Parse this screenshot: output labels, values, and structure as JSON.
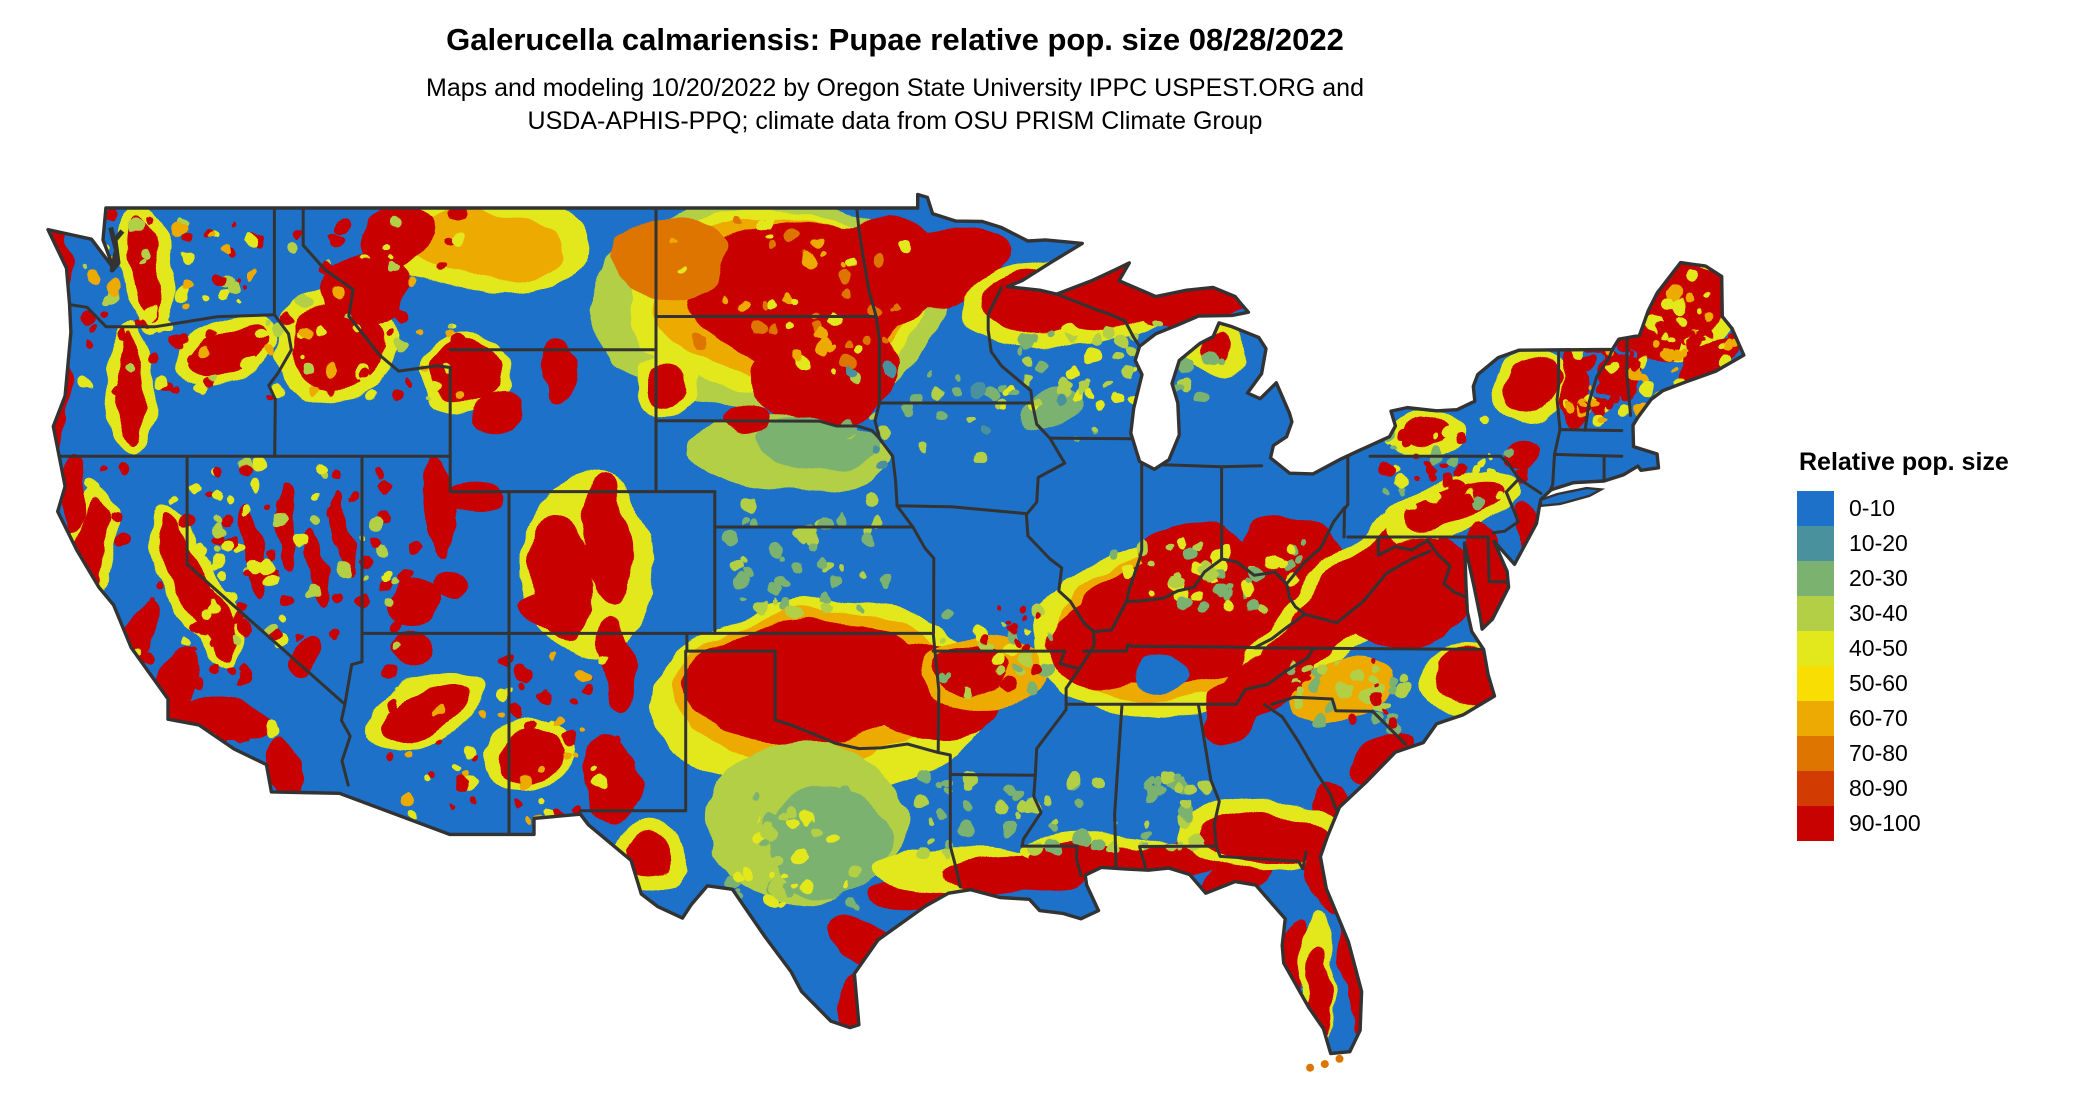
{
  "header": {
    "title": "Galerucella calmariensis: Pupae relative pop. size 08/28/2022",
    "subtitle_line1": "Maps and modeling 10/20/2022 by Oregon State University IPPC USPEST.ORG and",
    "subtitle_line2": "USDA-APHIS-PPQ; climate data from OSU PRISM Climate Group"
  },
  "legend": {
    "title": "Relative pop. size",
    "items": [
      {
        "label": "0-10",
        "color": "#1d71c8"
      },
      {
        "label": "10-20",
        "color": "#4a919e"
      },
      {
        "label": "20-30",
        "color": "#7bb26f"
      },
      {
        "label": "30-40",
        "color": "#b2cf45"
      },
      {
        "label": "40-50",
        "color": "#e3e81d"
      },
      {
        "label": "50-60",
        "color": "#f8de02"
      },
      {
        "label": "60-70",
        "color": "#edaa02"
      },
      {
        "label": "70-80",
        "color": "#dd7500"
      },
      {
        "label": "80-90",
        "color": "#d23b02"
      },
      {
        "label": "90-100",
        "color": "#c80101"
      }
    ]
  },
  "map": {
    "description": "Contiguous United States raster map of relative pupae population size: blue (0-10) base with red/orange/yellow hotspots over the western mountain ranges, the northern plains (Dakotas/Minnesota), Oklahoma-north Texas, Kentucky-Tennessee, the Appalachians and mid-Atlantic, the Gulf Coast fringe, Florida coasts and northern New England.",
    "background": "#ffffff",
    "base_color": "#1d71c8",
    "border_color": "#333333",
    "palette": {
      "b": "#1d71c8",
      "t": "#4a919e",
      "g": "#7bb26f",
      "yg": "#b2cf45",
      "y": "#e3e81d",
      "gd": "#f8de02",
      "o": "#edaa02",
      "do": "#dd7500",
      "ro": "#d23b02",
      "r": "#c80101"
    },
    "hotspots": [
      [
        -100.3,
        46.3,
        6.0,
        3.0,
        0,
        "yg"
      ],
      [
        -100.0,
        46.4,
        5.0,
        2.6,
        0,
        "y"
      ],
      [
        -99.8,
        46.5,
        4.4,
        2.3,
        0,
        "o"
      ],
      [
        -99.2,
        46.6,
        3.7,
        2.1,
        0,
        "r"
      ],
      [
        -98.4,
        44.5,
        2.5,
        1.6,
        -18,
        "r"
      ],
      [
        -96.5,
        47.2,
        2.3,
        1.5,
        -12,
        "r"
      ],
      [
        -94.3,
        47.4,
        2.4,
        1.1,
        -14,
        "r"
      ],
      [
        -90.0,
        46.35,
        3.8,
        1.25,
        -7,
        "y"
      ],
      [
        -89.8,
        46.45,
        3.2,
        0.95,
        -7,
        "r"
      ],
      [
        -85.9,
        46.35,
        2.3,
        0.6,
        -4,
        "r"
      ],
      [
        -103.6,
        47.6,
        2.0,
        1.2,
        0,
        "do"
      ],
      [
        -110.1,
        48.1,
        3.8,
        1.5,
        6,
        "y"
      ],
      [
        -109.8,
        47.9,
        2.6,
        1.0,
        6,
        "o"
      ],
      [
        -112.9,
        48.3,
        1.3,
        0.9,
        -20,
        "r"
      ],
      [
        -103.75,
        43.95,
        1.15,
        0.85,
        0,
        "y"
      ],
      [
        -103.75,
        43.95,
        0.75,
        0.6,
        0,
        "r"
      ],
      [
        -99.6,
        42.0,
        3.4,
        1.05,
        3,
        "yg"
      ],
      [
        -98.6,
        42.3,
        2.0,
        0.75,
        0,
        "g"
      ],
      [
        -100.9,
        42.95,
        0.8,
        0.45,
        0,
        "r"
      ],
      [
        -121.4,
        47.4,
        0.95,
        1.9,
        -8,
        "y"
      ],
      [
        -121.45,
        47.35,
        0.5,
        1.6,
        -8,
        "r"
      ],
      [
        -121.95,
        43.9,
        0.85,
        2.0,
        -4,
        "y"
      ],
      [
        -121.95,
        43.9,
        0.45,
        1.75,
        -4,
        "r"
      ],
      [
        -124.35,
        47.4,
        0.3,
        1.3,
        4,
        "r"
      ],
      [
        -124.25,
        43.9,
        0.28,
        1.7,
        4,
        "r"
      ],
      [
        -118.7,
        44.9,
        1.7,
        0.9,
        -28,
        "y"
      ],
      [
        -118.6,
        44.9,
        1.3,
        0.6,
        -28,
        "r"
      ],
      [
        -123.3,
        39.5,
        0.8,
        1.7,
        10,
        "y"
      ],
      [
        -123.35,
        39.4,
        0.5,
        1.45,
        10,
        "r"
      ],
      [
        -123.9,
        40.9,
        0.45,
        1.2,
        6,
        "r"
      ],
      [
        -121.7,
        36.7,
        0.55,
        1.2,
        22,
        "r"
      ],
      [
        -120.4,
        35.5,
        0.75,
        1.1,
        18,
        "r"
      ],
      [
        -119.75,
        38.3,
        0.95,
        2.5,
        -27,
        "y"
      ],
      [
        -119.7,
        38.25,
        0.6,
        2.25,
        -27,
        "r"
      ],
      [
        -118.7,
        34.55,
        1.7,
        0.55,
        4,
        "r"
      ],
      [
        -116.7,
        33.2,
        0.6,
        0.9,
        -8,
        "r"
      ],
      [
        -115.0,
        45.1,
        2.1,
        1.6,
        -22,
        "y"
      ],
      [
        -114.9,
        45.1,
        1.6,
        1.2,
        -22,
        "r"
      ],
      [
        -113.9,
        46.8,
        1.6,
        1.0,
        -32,
        "r"
      ],
      [
        -110.5,
        44.3,
        1.5,
        1.1,
        -10,
        "y"
      ],
      [
        -110.45,
        44.35,
        1.15,
        0.85,
        -10,
        "r"
      ],
      [
        -109.3,
        43.2,
        0.85,
        0.65,
        -35,
        "r"
      ],
      [
        -107.45,
        44.5,
        0.6,
        0.9,
        -12,
        "r"
      ],
      [
        -111.45,
        40.6,
        0.5,
        1.4,
        -6,
        "r"
      ],
      [
        -110.3,
        40.82,
        1.1,
        0.4,
        2,
        "r"
      ],
      [
        -112.3,
        37.9,
        0.9,
        0.7,
        -18,
        "r"
      ],
      [
        -111.0,
        38.3,
        0.6,
        0.5,
        -25,
        "r"
      ],
      [
        -106.4,
        38.9,
        2.3,
        2.6,
        0,
        "y"
      ],
      [
        -107.3,
        38.6,
        1.05,
        1.9,
        -8,
        "r"
      ],
      [
        -105.7,
        39.6,
        0.8,
        1.8,
        -6,
        "r"
      ],
      [
        -107.6,
        37.65,
        1.1,
        0.6,
        4,
        "r"
      ],
      [
        -105.35,
        36.2,
        0.55,
        1.3,
        -10,
        "r"
      ],
      [
        -108.35,
        33.6,
        1.5,
        1.0,
        -15,
        "y"
      ],
      [
        -108.3,
        33.55,
        1.05,
        0.7,
        -15,
        "r"
      ],
      [
        -111.9,
        34.8,
        2.1,
        0.95,
        -24,
        "y"
      ],
      [
        -111.85,
        34.75,
        1.55,
        0.6,
        -24,
        "r"
      ],
      [
        -112.35,
        36.55,
        0.65,
        0.45,
        0,
        "r"
      ],
      [
        -117.7,
        39.3,
        0.32,
        1.35,
        -10,
        "r"
      ],
      [
        -116.65,
        40.0,
        0.3,
        1.2,
        -8,
        "r"
      ],
      [
        -115.55,
        38.8,
        0.3,
        1.2,
        -10,
        "r"
      ],
      [
        -114.75,
        39.9,
        0.3,
        1.1,
        -8,
        "r"
      ],
      [
        -115.85,
        36.3,
        0.45,
        0.5,
        0,
        "r"
      ],
      [
        -98.4,
        35.2,
        5.8,
        2.7,
        -4,
        "y"
      ],
      [
        -98.6,
        35.5,
        4.9,
        2.1,
        -4,
        "o"
      ],
      [
        -99.0,
        35.6,
        4.2,
        1.7,
        -4,
        "r"
      ],
      [
        -94.6,
        35.4,
        2.3,
        1.4,
        8,
        "r"
      ],
      [
        -92.9,
        35.9,
        2.1,
        1.1,
        0,
        "o"
      ],
      [
        -93.3,
        36.0,
        1.3,
        0.7,
        0,
        "r"
      ],
      [
        -98.9,
        31.7,
        3.3,
        2.3,
        0,
        "yg"
      ],
      [
        -98.2,
        31.1,
        2.1,
        1.6,
        0,
        "g"
      ],
      [
        -104.25,
        30.7,
        1.3,
        0.9,
        0,
        "y"
      ],
      [
        -104.3,
        30.75,
        0.8,
        0.55,
        0,
        "r"
      ],
      [
        -105.6,
        32.9,
        0.9,
        1.3,
        -8,
        "r"
      ],
      [
        -86.2,
        37.1,
        5.2,
        2.5,
        -4,
        "y"
      ],
      [
        -86.1,
        37.2,
        4.5,
        2.1,
        -4,
        "o"
      ],
      [
        -86.0,
        37.35,
        3.9,
        1.8,
        -4,
        "r"
      ],
      [
        -88.9,
        36.7,
        1.9,
        1.2,
        0,
        "r"
      ],
      [
        -85.4,
        38.8,
        2.3,
        1.1,
        18,
        "r"
      ],
      [
        -82.4,
        38.9,
        1.9,
        1.4,
        25,
        "r"
      ],
      [
        -86.8,
        35.85,
        0.95,
        0.6,
        0,
        "b"
      ],
      [
        -80.6,
        37.9,
        4.8,
        1.2,
        -41,
        "y"
      ],
      [
        -80.55,
        37.95,
        4.3,
        0.85,
        -41,
        "r"
      ],
      [
        -77.0,
        40.5,
        2.4,
        0.9,
        -22,
        "y"
      ],
      [
        -76.9,
        40.55,
        1.8,
        0.55,
        -22,
        "r"
      ],
      [
        -78.3,
        38.1,
        2.4,
        1.5,
        -18,
        "r"
      ],
      [
        -83.3,
        35.6,
        1.6,
        0.85,
        -28,
        "r"
      ],
      [
        -84.4,
        34.8,
        1.1,
        0.75,
        -28,
        "r"
      ],
      [
        -76.4,
        35.6,
        1.7,
        1.0,
        0,
        "y"
      ],
      [
        -76.3,
        35.7,
        1.25,
        0.8,
        0,
        "r"
      ],
      [
        -75.7,
        38.3,
        0.65,
        1.7,
        -8,
        "r"
      ],
      [
        -74.35,
        39.9,
        0.45,
        0.95,
        -14,
        "r"
      ],
      [
        -76.9,
        38.55,
        0.6,
        1.1,
        -12,
        "r"
      ],
      [
        -79.4,
        33.4,
        1.3,
        0.5,
        -38,
        "r"
      ],
      [
        -80.7,
        35.4,
        1.7,
        0.85,
        -22,
        "o"
      ],
      [
        -81.0,
        31.8,
        0.6,
        1.0,
        -16,
        "r"
      ],
      [
        -97.3,
        26.5,
        0.55,
        1.05,
        12,
        "r"
      ],
      [
        -96.9,
        28.2,
        1.6,
        0.55,
        32,
        "r"
      ],
      [
        -94.9,
        29.55,
        1.9,
        0.5,
        4,
        "r"
      ],
      [
        -93.6,
        30.35,
        3.0,
        0.65,
        0,
        "y"
      ],
      [
        -91.9,
        30.15,
        2.3,
        0.55,
        0,
        "r"
      ],
      [
        -88.9,
        30.85,
        2.6,
        0.6,
        0,
        "y"
      ],
      [
        -88.9,
        30.6,
        2.3,
        0.5,
        0,
        "r"
      ],
      [
        -86.3,
        30.6,
        2.3,
        0.5,
        0,
        "r"
      ],
      [
        -84.3,
        30.05,
        1.4,
        0.45,
        -22,
        "r"
      ],
      [
        -83.4,
        31.3,
        2.9,
        1.05,
        0,
        "y"
      ],
      [
        -83.3,
        31.2,
        2.3,
        0.75,
        0,
        "r"
      ],
      [
        -81.35,
        30.1,
        0.5,
        0.9,
        -12,
        "r"
      ],
      [
        -80.4,
        27.9,
        0.4,
        2.6,
        -7,
        "r"
      ],
      [
        -82.5,
        27.5,
        0.45,
        1.6,
        8,
        "r"
      ],
      [
        -81.55,
        27.4,
        0.6,
        1.9,
        -4,
        "y"
      ],
      [
        -81.45,
        26.9,
        0.4,
        1.3,
        -4,
        "r"
      ],
      [
        -74.35,
        43.9,
        1.35,
        1.05,
        0,
        "y"
      ],
      [
        -74.3,
        43.95,
        0.95,
        0.8,
        0,
        "r"
      ],
      [
        -74.65,
        42.1,
        0.55,
        0.4,
        0,
        "r"
      ],
      [
        -77.9,
        42.6,
        1.4,
        0.65,
        0,
        "y"
      ],
      [
        -77.95,
        42.65,
        0.85,
        0.4,
        0,
        "r"
      ],
      [
        -72.85,
        43.9,
        0.45,
        1.1,
        -4,
        "r"
      ],
      [
        -71.35,
        44.25,
        0.75,
        0.55,
        0,
        "r"
      ],
      [
        -69.3,
        46.2,
        2.1,
        1.5,
        -18,
        "y"
      ],
      [
        -69.0,
        46.4,
        1.5,
        1.05,
        -18,
        "r"
      ],
      [
        -70.0,
        45.4,
        1.0,
        0.8,
        -25,
        "r"
      ],
      [
        -68.3,
        44.7,
        1.3,
        0.45,
        -28,
        "r"
      ],
      [
        -85.0,
        45.0,
        1.0,
        0.75,
        0,
        "y"
      ],
      [
        -85.0,
        45.1,
        0.55,
        0.4,
        0,
        "r"
      ],
      [
        -90.6,
        43.4,
        1.1,
        0.65,
        -18,
        "g"
      ]
    ],
    "speckle_regions": [
      [
        -123.6,
        -110.5,
        43.6,
        48.9,
        130,
        7,
        [
          "r",
          "r",
          "r",
          "y",
          "o",
          "yg"
        ]
      ],
      [
        -119.8,
        -112.2,
        36.6,
        41.9,
        75,
        11,
        [
          "r",
          "r",
          "y",
          "yg"
        ]
      ],
      [
        -113.2,
        -105.0,
        31.7,
        36.4,
        65,
        13,
        [
          "r",
          "r",
          "y",
          "o"
        ]
      ],
      [
        -123.8,
        -117.0,
        33.5,
        41.8,
        50,
        17,
        [
          "r",
          "y"
        ]
      ],
      [
        -73.2,
        -69.6,
        42.9,
        45.2,
        60,
        19,
        [
          "r",
          "r",
          "y",
          "o"
        ]
      ],
      [
        -88.5,
        -82.0,
        37.6,
        39.6,
        50,
        23,
        [
          "g",
          "yg",
          "y"
        ]
      ],
      [
        -95.5,
        -85.2,
        30.8,
        33.2,
        60,
        29,
        [
          "g",
          "g",
          "yg"
        ]
      ],
      [
        -92.5,
        -84.8,
        43.2,
        45.8,
        50,
        31,
        [
          "g",
          "yg",
          "y"
        ]
      ],
      [
        -79.3,
        -74.6,
        40.6,
        43.1,
        45,
        37,
        [
          "y",
          "g",
          "r"
        ]
      ],
      [
        -101.5,
        -96.2,
        37.6,
        40.8,
        40,
        41,
        [
          "g",
          "yg"
        ]
      ],
      [
        -70.9,
        -67.3,
        43.9,
        47.2,
        50,
        43,
        [
          "r",
          "o",
          "y"
        ]
      ],
      [
        -94.3,
        -90.6,
        35.3,
        37.8,
        45,
        47,
        [
          "g",
          "yg",
          "y",
          "r"
        ]
      ],
      [
        -101.5,
        -97.0,
        29.3,
        32.5,
        50,
        53,
        [
          "g",
          "yg",
          "y"
        ]
      ],
      [
        -82.5,
        -78.5,
        34.3,
        36.3,
        40,
        59,
        [
          "g",
          "yg",
          "r"
        ]
      ],
      [
        -103.5,
        -95.5,
        44.2,
        48.6,
        45,
        61,
        [
          "y",
          "o",
          "do"
        ]
      ],
      [
        -97.5,
        -89.0,
        41.5,
        44.5,
        35,
        67,
        [
          "g",
          "yg",
          "t"
        ]
      ]
    ]
  }
}
